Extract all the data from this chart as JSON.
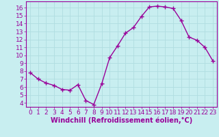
{
  "x": [
    0,
    1,
    2,
    3,
    4,
    5,
    6,
    7,
    8,
    9,
    10,
    11,
    12,
    13,
    14,
    15,
    16,
    17,
    18,
    19,
    20,
    21,
    22,
    23
  ],
  "y": [
    7.8,
    7.0,
    6.5,
    6.2,
    5.7,
    5.6,
    6.3,
    4.3,
    3.8,
    6.4,
    9.7,
    11.2,
    12.8,
    13.5,
    14.9,
    16.1,
    16.2,
    16.1,
    15.9,
    14.4,
    12.3,
    11.9,
    11.0,
    9.3
  ],
  "line_color": "#990099",
  "marker": "+",
  "marker_size": 4,
  "xlabel": "Windchill (Refroidissement éolien,°C)",
  "xlim": [
    -0.5,
    23.5
  ],
  "ylim": [
    3.5,
    16.8
  ],
  "yticks": [
    4,
    5,
    6,
    7,
    8,
    9,
    10,
    11,
    12,
    13,
    14,
    15,
    16
  ],
  "xticks": [
    0,
    1,
    2,
    3,
    4,
    5,
    6,
    7,
    8,
    9,
    10,
    11,
    12,
    13,
    14,
    15,
    16,
    17,
    18,
    19,
    20,
    21,
    22,
    23
  ],
  "bg_color": "#c8eef0",
  "grid_color": "#b0dde0",
  "axis_color": "#990099",
  "tick_color": "#990099",
  "label_color": "#990099",
  "xlabel_fontsize": 7,
  "tick_fontsize": 6.5,
  "line_width": 1.0
}
